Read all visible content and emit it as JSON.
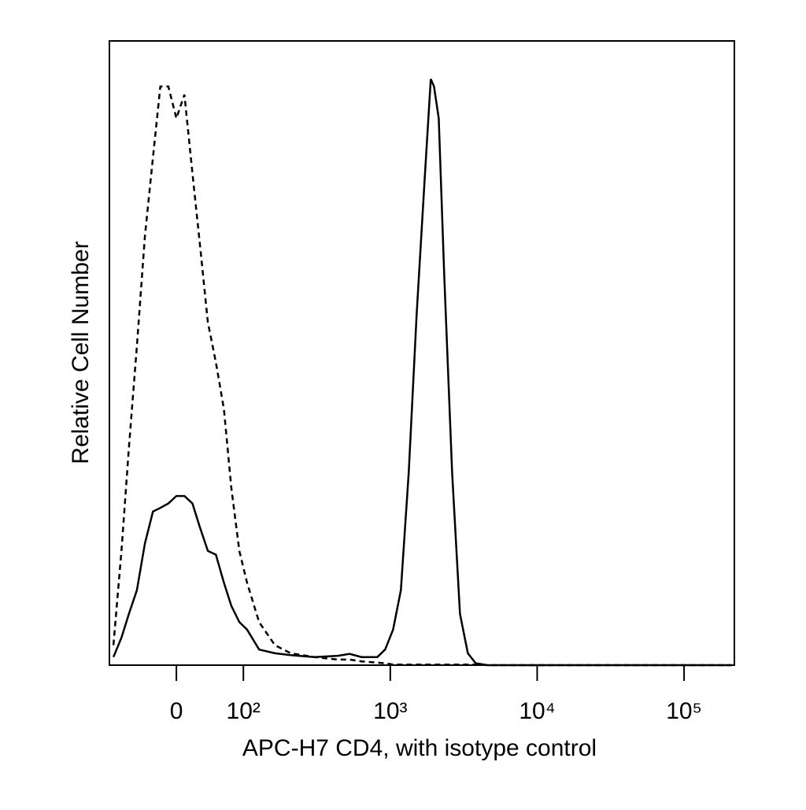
{
  "chart_data": {
    "type": "line",
    "x_label": "APC-H7 CD4, with isotype control",
    "y_label": "Relative Cell Number",
    "x_scale": "biexponential",
    "x": [
      -94,
      -82,
      -71,
      -59,
      -47,
      -35,
      -24,
      -12,
      0,
      12,
      24,
      35,
      47,
      59,
      71,
      82,
      94,
      106,
      128,
      164,
      210,
      304,
      440,
      529,
      637,
      816,
      923,
      1045,
      1181,
      1336,
      1512,
      1711,
      1888,
      1986,
      2138,
      2330,
      2636,
      2983,
      3375,
      3819,
      4593,
      12330,
      42360,
      210900
    ],
    "series": [
      {
        "color": "#000000",
        "dashed": false,
        "values": [
          1.3,
          4.4,
          8.2,
          12,
          19.5,
          24.6,
          25.2,
          25.9,
          27.1,
          27.1,
          25.9,
          22.1,
          18.3,
          17.7,
          13.2,
          9.5,
          6.9,
          5.7,
          2.5,
          1.9,
          1.6,
          1.3,
          1.5,
          1.8,
          1.3,
          1.3,
          2.5,
          5.7,
          12,
          30.9,
          56.1,
          77.6,
          93.9,
          92.7,
          87.6,
          62.4,
          30.9,
          8.2,
          1.9,
          0.3,
          0,
          0,
          0,
          0
        ]
      },
      {
        "color": "#000000",
        "dashed": true,
        "values": [
          3.2,
          18.3,
          34.7,
          51.1,
          68.7,
          81.3,
          92.7,
          92.7,
          87.6,
          91.4,
          78.8,
          67.5,
          54.9,
          48.5,
          41,
          28.4,
          18.3,
          13.2,
          6.9,
          3.2,
          1.9,
          1.3,
          0.9,
          0.9,
          0.6,
          0.4,
          0.3,
          0.1,
          0.1,
          0.1,
          0.1,
          0.1,
          0.1,
          0.1,
          0.1,
          0.1,
          0.1,
          0.1,
          0.1,
          0.1,
          0,
          0,
          0,
          0
        ]
      }
    ],
    "xlim": [
      -100,
      220000
    ],
    "ylim": [
      0,
      100
    ],
    "xticks": [
      0,
      {
        "value": 100,
        "label": "10²"
      },
      {
        "value": 1000,
        "label": "10³"
      },
      {
        "value": 10000,
        "label": "10⁴"
      },
      {
        "value": 100000,
        "label": "10⁵"
      }
    ]
  }
}
